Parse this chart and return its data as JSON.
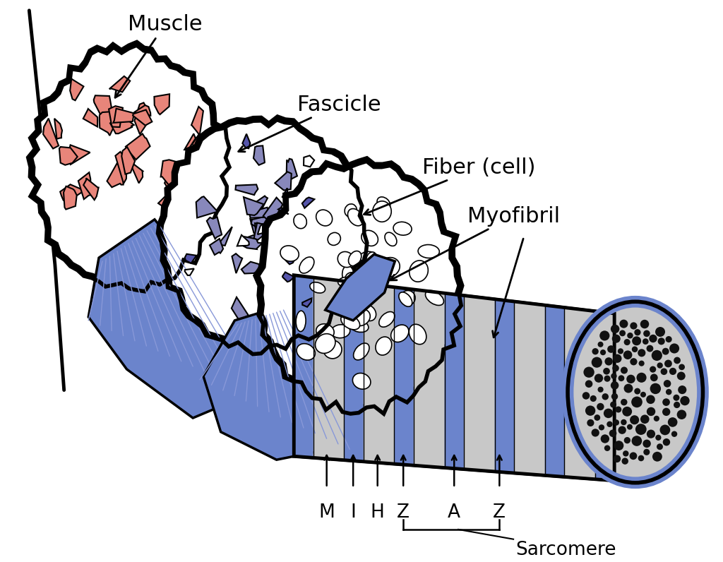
{
  "bg_color": "#ffffff",
  "muscle_color": "#E8857A",
  "fascicle_blue": "#6B84CC",
  "fascicle_blue_light": "#8898D8",
  "fascicle_cell_color": "#8888BB",
  "fascicle_cell_dark": "#5555AA",
  "myofibril_gray": "#C8C8C8",
  "myofibril_blue": "#6B84CC",
  "dot_color": "#1a1a1a",
  "line_color": "#000000",
  "label_fontsize": 22,
  "band_label_fontsize": 19,
  "sarcomere_fontsize": 19,
  "labels": {
    "muscle": "Muscle",
    "fascicle": "Fascicle",
    "fiber": "Fiber (cell)",
    "myofibril": "Myofibril",
    "sarcomere": "Sarcomere"
  },
  "band_labels": [
    "M",
    "I",
    "H",
    "Z",
    "A",
    "Z"
  ]
}
